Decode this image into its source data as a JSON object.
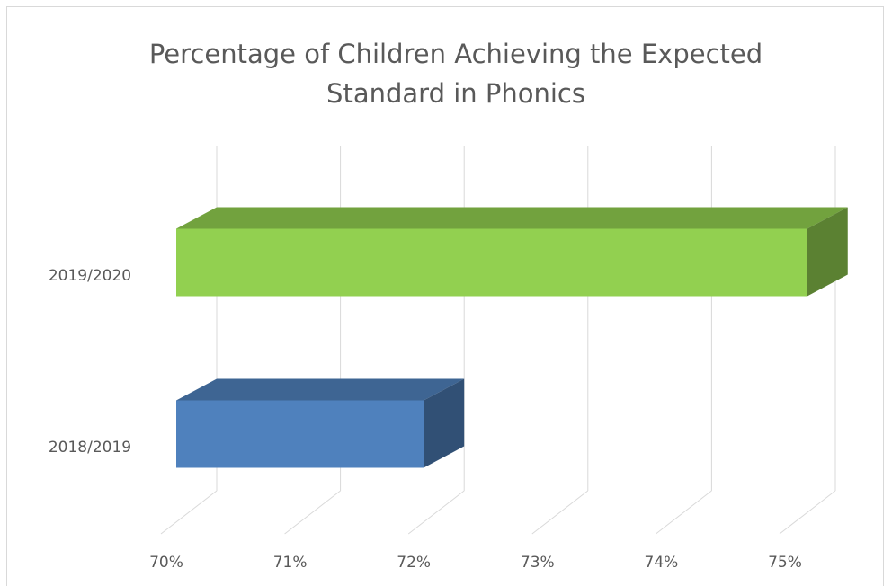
{
  "chart_data": {
    "type": "bar",
    "orientation": "horizontal",
    "style": "3d",
    "title": "Percentage of Children Achieving the Expected\nStandard in Phonics",
    "categories": [
      "2019/2020",
      "2018/2019"
    ],
    "values": [
      75.1,
      72.0
    ],
    "colors": [
      "#92d050",
      "#4f81bd"
    ],
    "xlim": [
      70,
      75
    ],
    "xticks": [
      70,
      71,
      72,
      73,
      74,
      75
    ],
    "xtick_labels": [
      "70%",
      "71%",
      "72%",
      "73%",
      "74%",
      "75%"
    ],
    "grid": true,
    "legend": false
  }
}
